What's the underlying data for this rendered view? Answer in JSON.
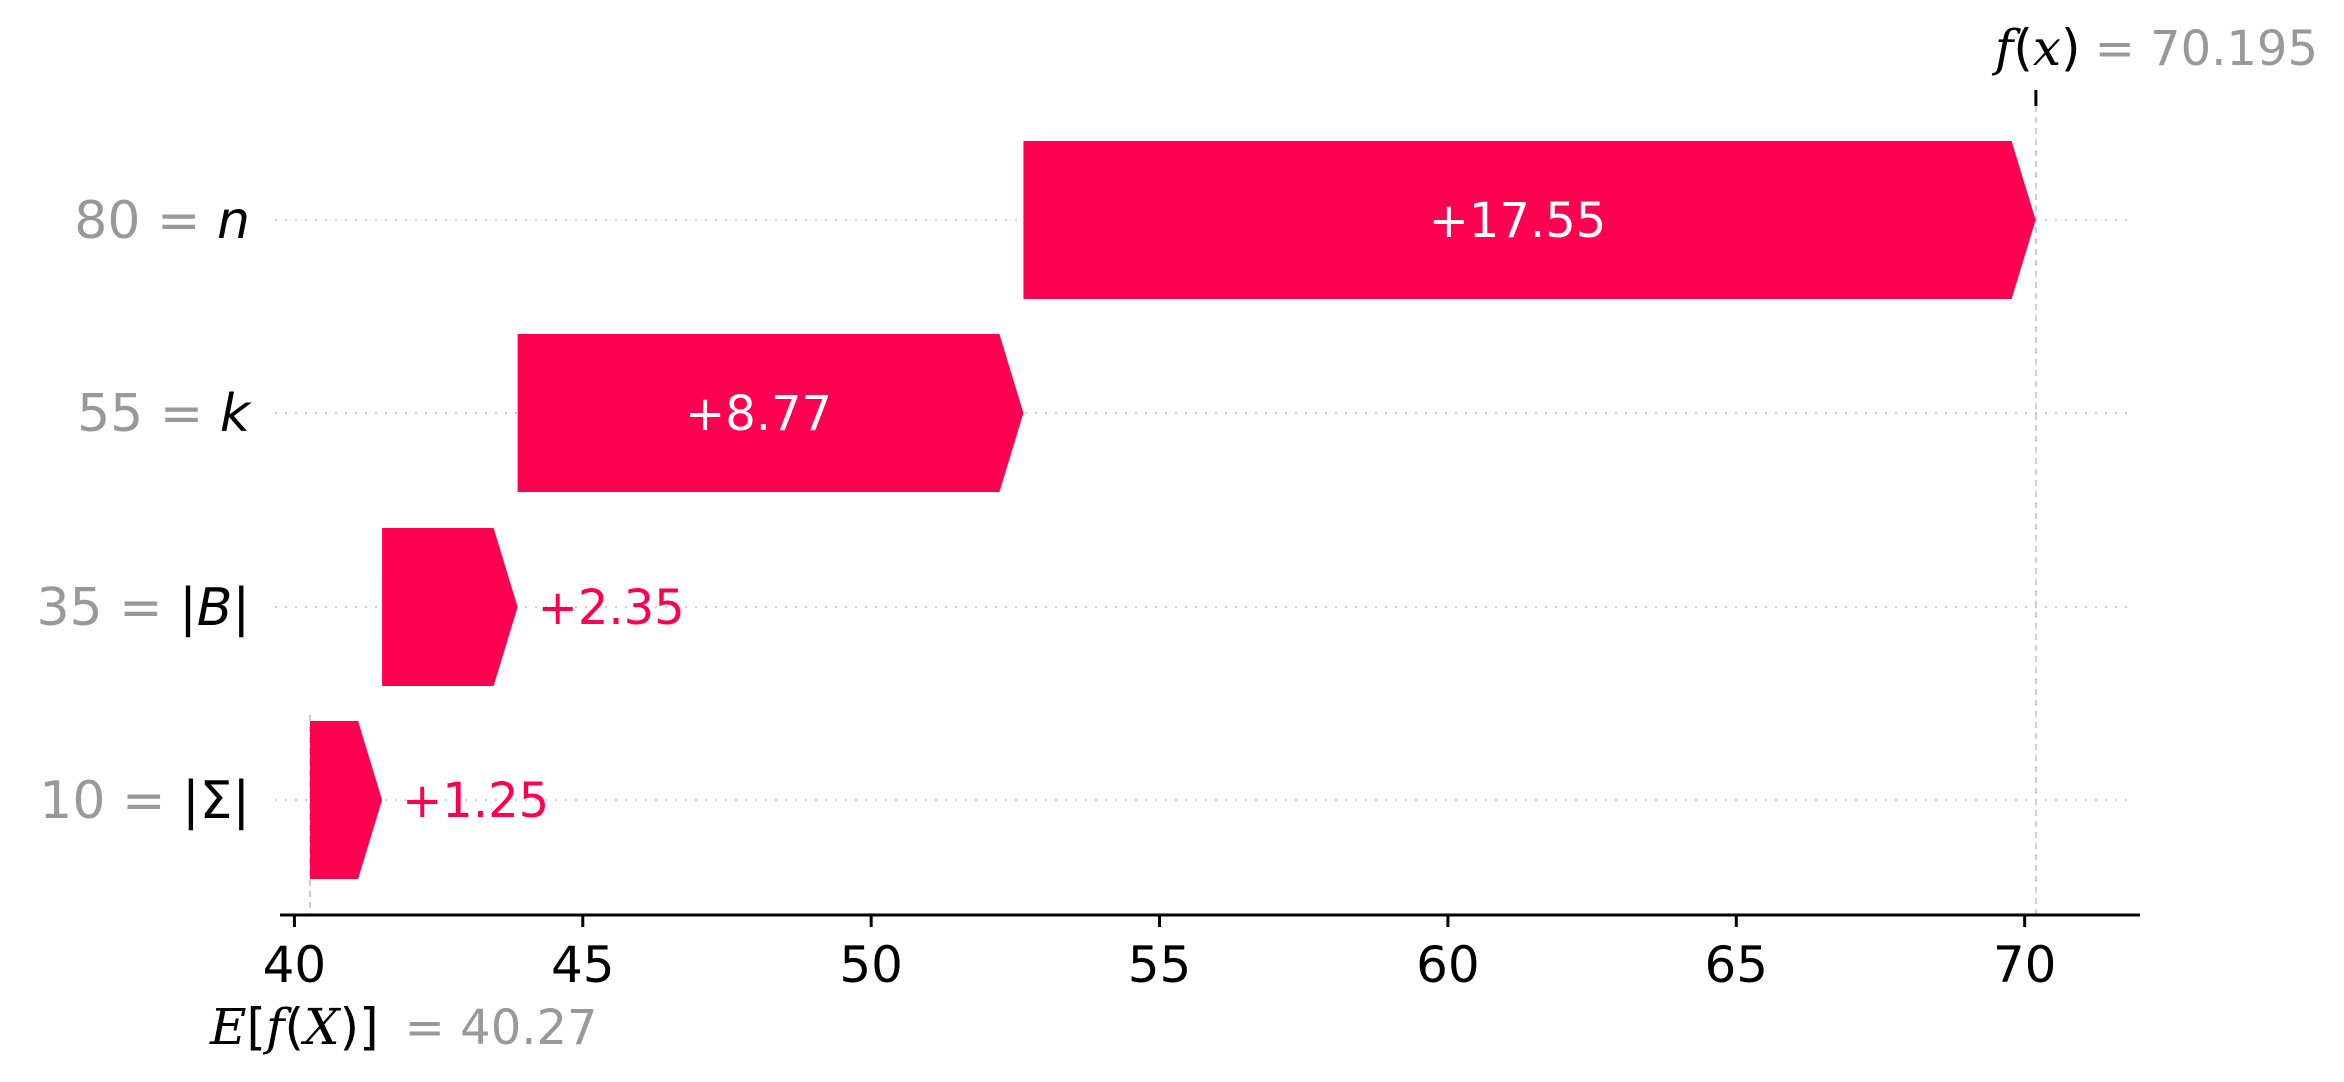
{
  "chart_data": {
    "type": "bar",
    "subtype": "waterfall",
    "base_value": 40.27,
    "final_value": 70.195,
    "features": [
      {
        "value_label": "80",
        "name": "n",
        "contribution": 17.55,
        "label": "+17.55"
      },
      {
        "value_label": "55",
        "name": "k",
        "contribution": 8.77,
        "label": "+8.77"
      },
      {
        "value_label": "35",
        "name": "|B|",
        "contribution": 2.35,
        "label": "+2.35"
      },
      {
        "value_label": "10",
        "name": "|Σ|",
        "contribution": 1.25,
        "label": "+1.25"
      }
    ],
    "xlim": [
      39.75,
      72.0
    ],
    "xticks": [
      40,
      45,
      50,
      55,
      60,
      65,
      70
    ],
    "fx_label": {
      "fn": "f",
      "arg": "x",
      "value_text": "= 70.195"
    },
    "efx_label": {
      "expect": "E",
      "fn": "f",
      "arg": "X",
      "value_text": "= 40.27"
    },
    "colors": {
      "positive": "#ff0051",
      "muted": "#999999",
      "axis": "#000000",
      "grid": "#cccccc"
    }
  }
}
